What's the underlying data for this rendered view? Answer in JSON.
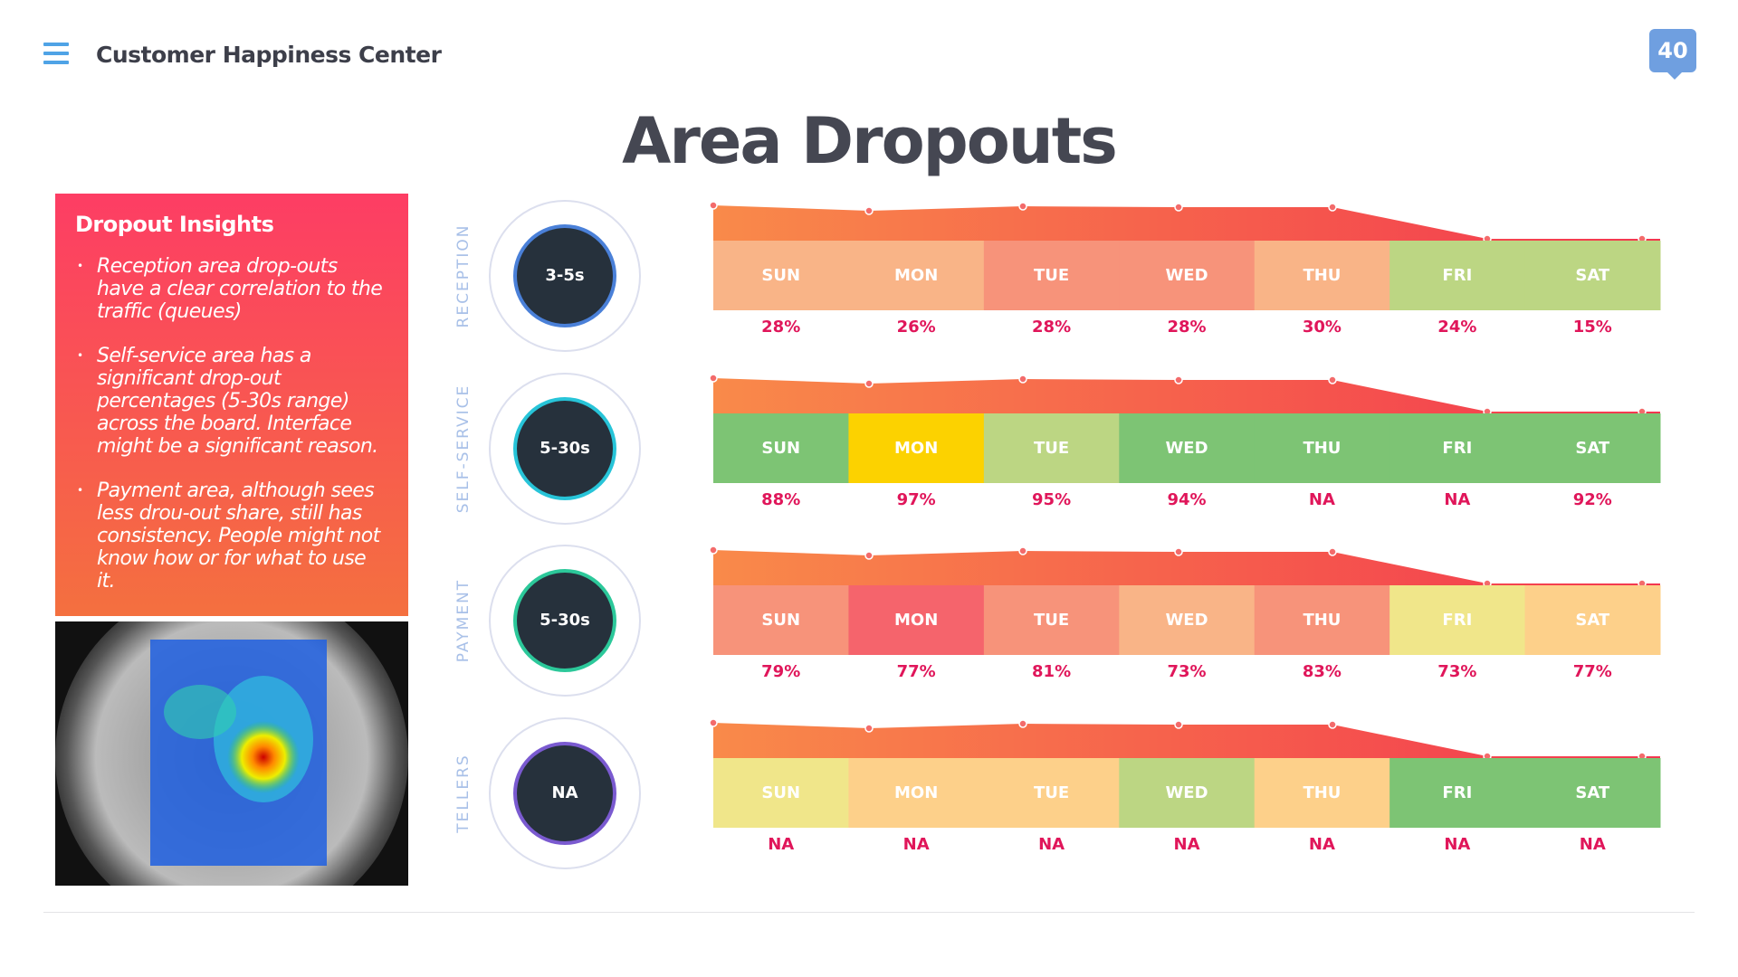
{
  "header": {
    "title": "Customer Happiness Center",
    "badge": "40"
  },
  "title": "Area Dropouts",
  "insights": {
    "heading": "Dropout Insights",
    "bullets": [
      "Reception area drop-outs have a clear correlation to the traffic (queues)",
      "Self-service area has a significant drop-out percentages (5-30s range) across the board. Interface might be a significant reason.",
      "Payment area, although sees less drou-out share, still has consistency. People might not know how or for what to use it."
    ]
  },
  "areas": [
    {
      "label": "RECEPTION",
      "time": "3-5s",
      "ring": "#4a80d8",
      "days": [
        {
          "day": "SUN",
          "color": "#f9b487",
          "value": "28%"
        },
        {
          "day": "MON",
          "color": "#f9b487",
          "value": "26%"
        },
        {
          "day": "TUE",
          "color": "#f7937a",
          "value": "28%"
        },
        {
          "day": "WED",
          "color": "#f7937a",
          "value": "28%"
        },
        {
          "day": "THU",
          "color": "#f9b487",
          "value": "30%"
        },
        {
          "day": "FRI",
          "color": "#bcd683",
          "value": "24%"
        },
        {
          "day": "SAT",
          "color": "#bcd683",
          "value": "15%"
        }
      ]
    },
    {
      "label": "SELF-SERVICE",
      "time": "5-30s",
      "ring": "#27c4d8",
      "days": [
        {
          "day": "SUN",
          "color": "#7dc474",
          "value": "88%"
        },
        {
          "day": "MON",
          "color": "#fcd200",
          "value": "97%"
        },
        {
          "day": "TUE",
          "color": "#bcd683",
          "value": "95%"
        },
        {
          "day": "WED",
          "color": "#7dc474",
          "value": "94%"
        },
        {
          "day": "THU",
          "color": "#7dc474",
          "value": "NA"
        },
        {
          "day": "FRI",
          "color": "#7dc474",
          "value": "NA"
        },
        {
          "day": "SAT",
          "color": "#7dc474",
          "value": "92%"
        }
      ]
    },
    {
      "label": "PAYMENT",
      "time": "5-30s",
      "ring": "#2cc89a",
      "days": [
        {
          "day": "SUN",
          "color": "#f7937a",
          "value": "79%"
        },
        {
          "day": "MON",
          "color": "#f5646c",
          "value": "77%"
        },
        {
          "day": "TUE",
          "color": "#f7937a",
          "value": "81%"
        },
        {
          "day": "WED",
          "color": "#f9b487",
          "value": "73%"
        },
        {
          "day": "THU",
          "color": "#f7937a",
          "value": "83%"
        },
        {
          "day": "FRI",
          "color": "#f0e68a",
          "value": "73%"
        },
        {
          "day": "SAT",
          "color": "#fdd08a",
          "value": "77%"
        }
      ]
    },
    {
      "label": "TELLERS",
      "time": "NA",
      "ring": "#7a5ad0",
      "days": [
        {
          "day": "SUN",
          "color": "#f0e68a",
          "value": "NA"
        },
        {
          "day": "MON",
          "color": "#fdd08a",
          "value": "NA"
        },
        {
          "day": "TUE",
          "color": "#fdd08a",
          "value": "NA"
        },
        {
          "day": "WED",
          "color": "#bcd683",
          "value": "NA"
        },
        {
          "day": "THU",
          "color": "#fdd08a",
          "value": "NA"
        },
        {
          "day": "FRI",
          "color": "#7dc474",
          "value": "NA"
        },
        {
          "day": "SAT",
          "color": "#7dc474",
          "value": "NA"
        }
      ]
    }
  ]
}
